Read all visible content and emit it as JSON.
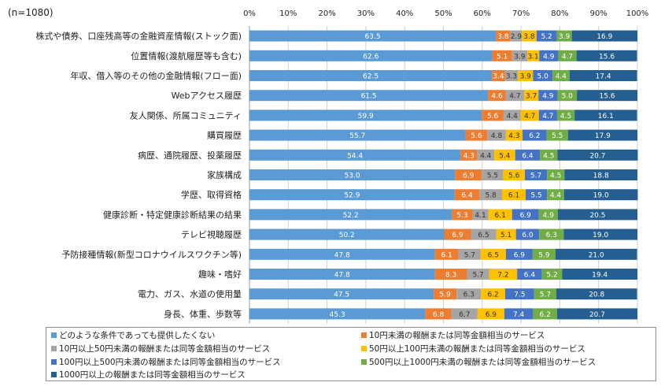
{
  "chart_data": {
    "type": "bar",
    "orientation": "horizontal",
    "stacked": true,
    "note": "(n=1080)",
    "categories": [
      "株式や債券、口座残高等の金融資産情報(ストック面)",
      "位置情報(渡航履歴等も含む)",
      "年収、借入等のその他の金融情報(フロー面)",
      "Webアクセス履歴",
      "友人関係、所属コミュニティ",
      "購買履歴",
      "病歴、通院履歴、投薬履歴",
      "家族構成",
      "学歴、取得資格",
      "健康診断・特定健康診断結果の結果",
      "テレビ視聴履歴",
      "予防接種情報(新型コロナウイルスワクチン等)",
      "趣味・嗜好",
      "電力、ガス、水道の使用量",
      "身長、体重、歩数等"
    ],
    "x_ticks": [
      "0%",
      "10%",
      "20%",
      "30%",
      "40%",
      "50%",
      "60%",
      "70%",
      "80%",
      "90%",
      "100%"
    ],
    "xlim": [
      0,
      100
    ],
    "grid": true,
    "legend_position": "bottom",
    "series": [
      {
        "name": "どのような条件であっても提供したくない",
        "color": "#5b9bd5",
        "values": [
          63.5,
          62.6,
          62.5,
          61.5,
          59.9,
          55.7,
          54.4,
          53.0,
          52.9,
          52.2,
          50.2,
          47.8,
          47.8,
          47.5,
          45.3
        ]
      },
      {
        "name": "10円未満の報酬または同等金額相当のサービス",
        "color": "#ed7d31",
        "values": [
          3.8,
          5.1,
          3.4,
          4.6,
          5.6,
          5.6,
          4.3,
          6.9,
          6.4,
          5.3,
          6.9,
          6.1,
          8.3,
          5.9,
          6.8
        ]
      },
      {
        "name": "10円以上50円未満の報酬または同等金額相当のサービス",
        "color": "#a5a5a5",
        "values": [
          2.9,
          3.9,
          3.3,
          4.7,
          4.4,
          4.8,
          4.4,
          5.5,
          5.8,
          4.1,
          6.5,
          5.7,
          5.7,
          6.3,
          6.7
        ]
      },
      {
        "name": "50円以上100円未満の報酬または同等金額相当のサービス",
        "color": "#ffc000",
        "values": [
          3.8,
          3.1,
          3.9,
          3.7,
          4.7,
          4.3,
          5.4,
          5.6,
          6.1,
          6.1,
          5.1,
          6.5,
          7.2,
          6.2,
          6.9
        ]
      },
      {
        "name": "100円以上500円未満の報酬または同等金額相当のサービス",
        "color": "#4472c4",
        "values": [
          5.2,
          4.9,
          5.0,
          4.9,
          4.7,
          6.2,
          6.4,
          5.7,
          5.5,
          6.9,
          6.0,
          6.9,
          6.4,
          7.5,
          7.4
        ]
      },
      {
        "name": "500円以上1000円未満の報酬または同等金額相当のサービス",
        "color": "#70ad47",
        "values": [
          3.9,
          4.7,
          4.4,
          5.0,
          4.5,
          5.5,
          4.5,
          4.5,
          4.4,
          4.9,
          6.3,
          5.9,
          5.2,
          5.7,
          6.2
        ]
      },
      {
        "name": "1000円以上の報酬または同等金額相当のサービス",
        "color": "#255e91",
        "values": [
          16.9,
          15.6,
          17.4,
          15.6,
          16.1,
          17.9,
          20.7,
          18.8,
          19.0,
          20.5,
          19.0,
          21.0,
          19.4,
          20.8,
          20.7
        ]
      }
    ]
  }
}
